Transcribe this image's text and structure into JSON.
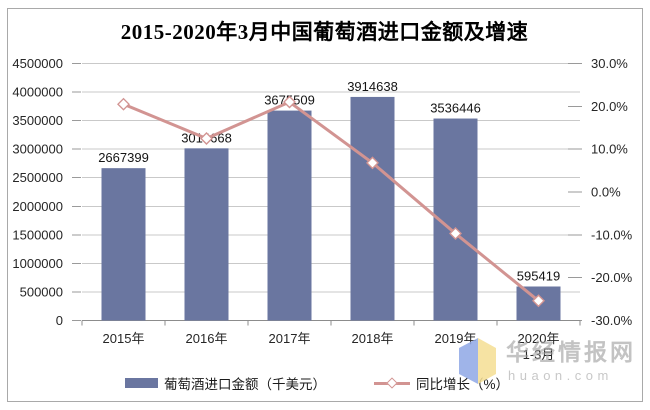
{
  "watermark": {
    "site_name": "华经情报网",
    "site_url": "huaon.com"
  },
  "colors": {
    "bar": "#6a76a0",
    "line": "#d29492",
    "grid": "#c9c9c9",
    "axis": "#8c8c8c",
    "tick": "#9a9a9a",
    "border": "#a9a9a9",
    "logo_blue": "#8fa8e6",
    "logo_yellow": "#f5df94"
  },
  "chart_data": {
    "type": "combo-bar-line",
    "title": "2015-2020年3月中国葡萄酒进口金额及增速",
    "categories": [
      "2015年",
      "2016年",
      "2017年",
      "2018年",
      "2019年",
      "2020年"
    ],
    "category_sublabels": [
      "",
      "",
      "",
      "",
      "",
      "1-3月"
    ],
    "bar_series": {
      "name": "葡萄酒进口金额（千美元）",
      "axis": "left",
      "values": [
        2667399,
        3014668,
        3675509,
        3914638,
        3536446,
        595419
      ]
    },
    "line_series": {
      "name": "同比增长（%）",
      "axis": "right",
      "marker": "white-diamond",
      "values_percent": [
        20.5,
        12.5,
        21.0,
        6.8,
        -9.7,
        -25.4
      ]
    },
    "left_axis": {
      "min": 0,
      "max": 4500000,
      "step": 500000,
      "tick_labels": [
        "4500000",
        "4000000",
        "3500000",
        "3000000",
        "2500000",
        "2000000",
        "1500000",
        "1000000",
        "500000",
        "0"
      ]
    },
    "right_axis": {
      "min": -30,
      "max": 30,
      "step": 10,
      "tick_labels": [
        "30.0%",
        "20.0%",
        "10.0%",
        "0.0%",
        "-10.0%",
        "-20.0%",
        "-30.0%"
      ]
    },
    "grid": "horizontal",
    "legend_position": "bottom"
  }
}
